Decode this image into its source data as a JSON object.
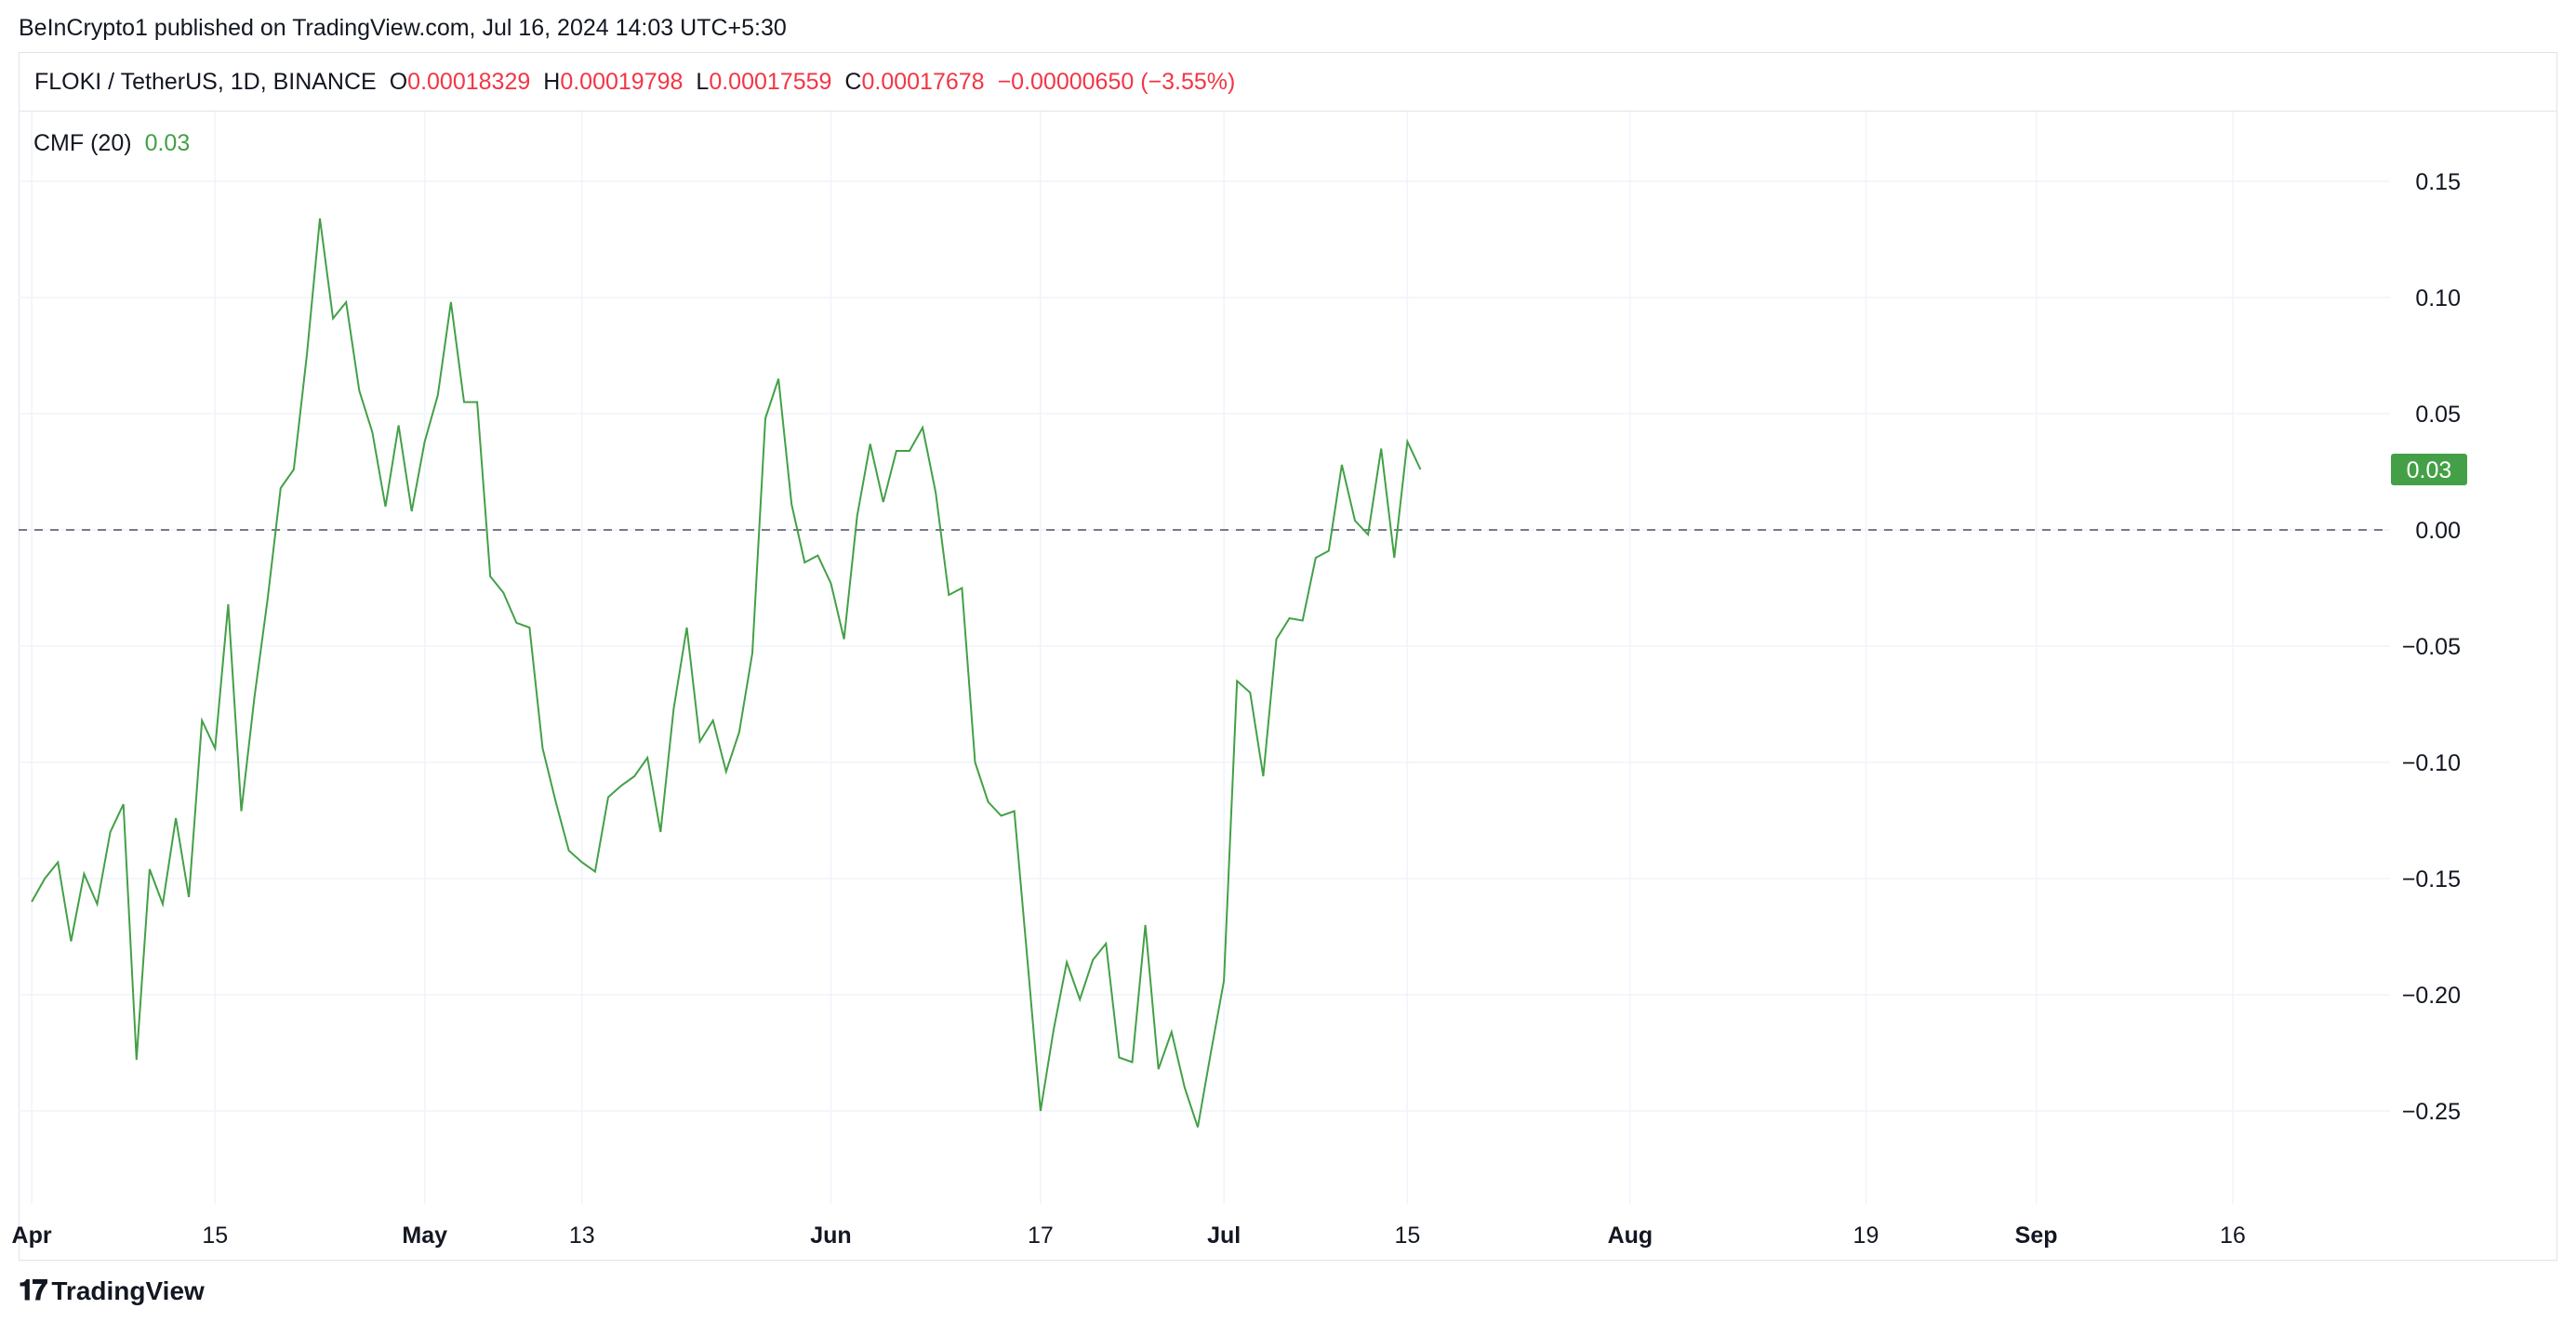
{
  "header": {
    "published": "BeInCrypto1 published on TradingView.com, Jul 16, 2024 14:03 UTC+5:30"
  },
  "symbol": {
    "name": "FLOKI / TetherUS, 1D, BINANCE",
    "open_label": "O",
    "open": "0.00018329",
    "high_label": "H",
    "high": "0.00019798",
    "low_label": "L",
    "low": "0.00017559",
    "close_label": "C",
    "close": "0.00017678",
    "change": "−0.00000650 (−3.55%)"
  },
  "indicator": {
    "name": "CMF (20)",
    "value": "0.03"
  },
  "footer": {
    "brand": "TradingView"
  },
  "colors": {
    "line": "#43a047",
    "badge": "#43a047",
    "down": "#f23645",
    "grid": "#f0f3fa"
  },
  "chart_data": {
    "type": "line",
    "series": [
      {
        "name": "CMF (20)",
        "x": [
          "2024-04-01",
          "2024-04-02",
          "2024-04-03",
          "2024-04-04",
          "2024-04-05",
          "2024-04-06",
          "2024-04-07",
          "2024-04-08",
          "2024-04-09",
          "2024-04-10",
          "2024-04-11",
          "2024-04-12",
          "2024-04-13",
          "2024-04-14",
          "2024-04-15",
          "2024-04-16",
          "2024-04-17",
          "2024-04-18",
          "2024-04-19",
          "2024-04-20",
          "2024-04-21",
          "2024-04-22",
          "2024-04-23",
          "2024-04-24",
          "2024-04-25",
          "2024-04-26",
          "2024-04-27",
          "2024-04-28",
          "2024-04-29",
          "2024-04-30",
          "2024-05-01",
          "2024-05-02",
          "2024-05-03",
          "2024-05-04",
          "2024-05-05",
          "2024-05-06",
          "2024-05-07",
          "2024-05-08",
          "2024-05-09",
          "2024-05-10",
          "2024-05-11",
          "2024-05-12",
          "2024-05-13",
          "2024-05-14",
          "2024-05-15",
          "2024-05-16",
          "2024-05-17",
          "2024-05-18",
          "2024-05-19",
          "2024-05-20",
          "2024-05-21",
          "2024-05-22",
          "2024-05-23",
          "2024-05-24",
          "2024-05-25",
          "2024-05-26",
          "2024-05-27",
          "2024-05-28",
          "2024-05-29",
          "2024-05-30",
          "2024-05-31",
          "2024-06-01",
          "2024-06-02",
          "2024-06-03",
          "2024-06-04",
          "2024-06-05",
          "2024-06-06",
          "2024-06-07",
          "2024-06-08",
          "2024-06-09",
          "2024-06-10",
          "2024-06-11",
          "2024-06-12",
          "2024-06-13",
          "2024-06-14",
          "2024-06-15",
          "2024-06-16",
          "2024-06-17",
          "2024-06-18",
          "2024-06-19",
          "2024-06-20",
          "2024-06-21",
          "2024-06-22",
          "2024-06-23",
          "2024-06-24",
          "2024-06-25",
          "2024-06-26",
          "2024-06-27",
          "2024-06-28",
          "2024-06-29",
          "2024-06-30",
          "2024-07-01",
          "2024-07-02",
          "2024-07-03",
          "2024-07-04",
          "2024-07-05",
          "2024-07-06",
          "2024-07-07",
          "2024-07-08",
          "2024-07-09",
          "2024-07-10",
          "2024-07-11",
          "2024-07-12",
          "2024-07-13",
          "2024-07-14",
          "2024-07-15",
          "2024-07-16"
        ],
        "values": [
          -0.16,
          -0.15,
          -0.143,
          -0.177,
          -0.148,
          -0.161,
          -0.13,
          -0.118,
          -0.228,
          -0.146,
          -0.161,
          -0.124,
          -0.158,
          -0.082,
          -0.094,
          -0.032,
          -0.121,
          -0.072,
          -0.03,
          0.018,
          0.026,
          0.075,
          0.134,
          0.091,
          0.098,
          0.06,
          0.042,
          0.01,
          0.045,
          0.008,
          0.038,
          0.058,
          0.098,
          0.055,
          0.055,
          -0.02,
          -0.027,
          -0.04,
          -0.042,
          -0.094,
          -0.117,
          -0.138,
          -0.143,
          -0.147,
          -0.115,
          -0.11,
          -0.106,
          -0.098,
          -0.13,
          -0.077,
          -0.042,
          -0.091,
          -0.082,
          -0.104,
          -0.087,
          -0.053,
          0.048,
          0.065,
          0.011,
          -0.014,
          -0.011,
          -0.023,
          -0.047,
          0.006,
          0.037,
          0.012,
          0.034,
          0.034,
          0.044,
          0.016,
          -0.028,
          -0.025,
          -0.1,
          -0.117,
          -0.123,
          -0.121,
          -0.185,
          -0.25,
          -0.215,
          -0.186,
          -0.202,
          -0.185,
          -0.178,
          -0.227,
          -0.229,
          -0.17,
          -0.232,
          -0.216,
          -0.24,
          -0.257,
          -0.225,
          -0.194,
          -0.065,
          -0.07,
          -0.106,
          -0.047,
          -0.038,
          -0.039,
          -0.012,
          -0.009,
          0.028,
          0.004,
          -0.002,
          0.035,
          -0.012,
          0.038,
          0.026
        ]
      }
    ],
    "x_ticks": [
      {
        "date": "2024-04-01",
        "label": "Apr",
        "bold": true
      },
      {
        "date": "2024-04-15",
        "label": "15",
        "bold": false
      },
      {
        "date": "2024-05-01",
        "label": "May",
        "bold": true
      },
      {
        "date": "2024-05-13",
        "label": "13",
        "bold": false
      },
      {
        "date": "2024-06-01",
        "label": "Jun",
        "bold": true
      },
      {
        "date": "2024-06-17",
        "label": "17",
        "bold": false
      },
      {
        "date": "2024-07-01",
        "label": "Jul",
        "bold": true
      },
      {
        "date": "2024-07-15",
        "label": "15",
        "bold": false
      },
      {
        "date": "2024-08-01",
        "label": "Aug",
        "bold": true
      },
      {
        "date": "2024-08-19",
        "label": "19",
        "bold": false
      },
      {
        "date": "2024-09-01",
        "label": "Sep",
        "bold": true
      },
      {
        "date": "2024-09-16",
        "label": "16",
        "bold": false
      }
    ],
    "y_ticks": [
      {
        "value": 0.15,
        "label": "0.15"
      },
      {
        "value": 0.1,
        "label": "0.10"
      },
      {
        "value": 0.05,
        "label": "0.05"
      },
      {
        "value": 0.0,
        "label": "0.00"
      },
      {
        "value": -0.05,
        "label": "−0.05"
      },
      {
        "value": -0.1,
        "label": "−0.10"
      },
      {
        "value": -0.15,
        "label": "−0.15"
      },
      {
        "value": -0.2,
        "label": "−0.20"
      },
      {
        "value": -0.25,
        "label": "−0.25"
      }
    ],
    "xlim": [
      "2024-03-31",
      "2024-09-28"
    ],
    "ylim": [
      -0.29,
      0.18
    ],
    "zero_line": 0.0,
    "last_value_badge": "0.03",
    "grid": true
  }
}
